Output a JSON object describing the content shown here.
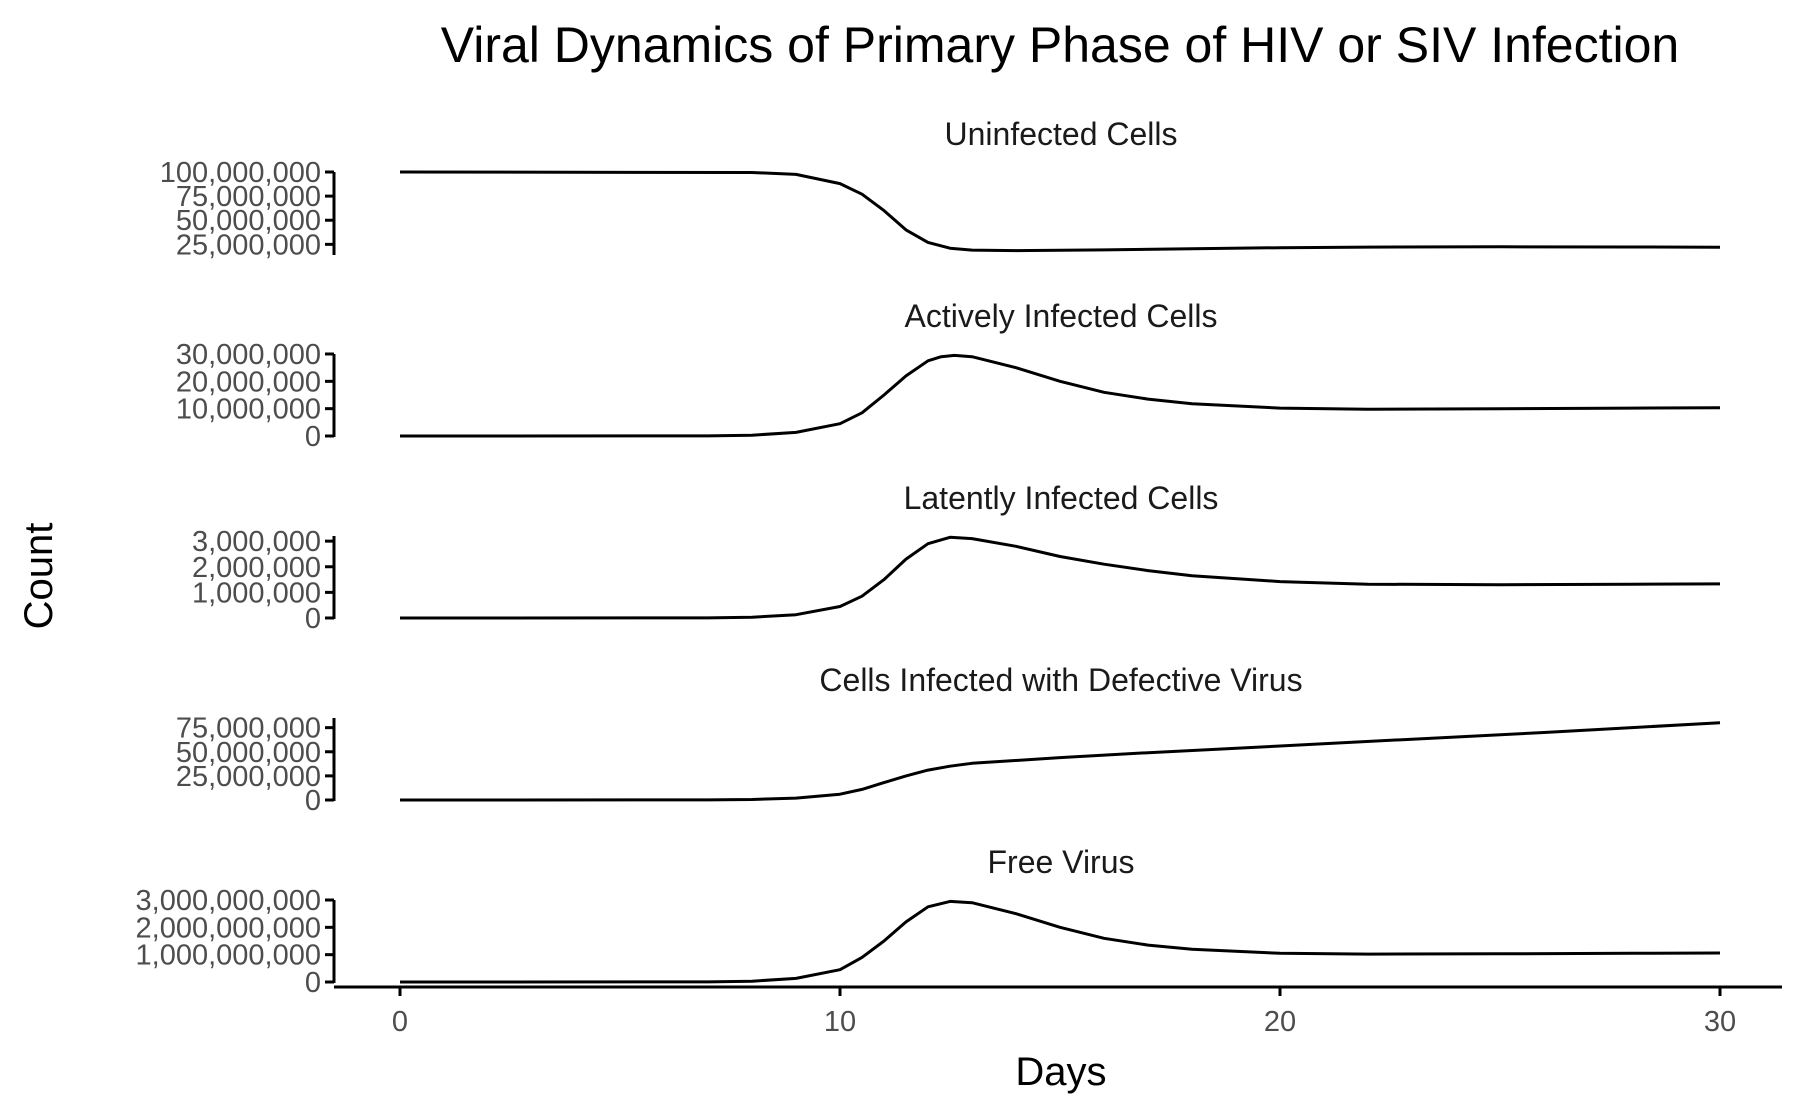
{
  "chart_data": {
    "type": "line",
    "title": "Viral Dynamics of Primary Phase of HIV or SIV Infection",
    "xlabel": "Days",
    "ylabel": "Count",
    "xlim": [
      0,
      30
    ],
    "x_ticks": [
      {
        "value": 0,
        "label": "0"
      },
      {
        "value": 10,
        "label": "10"
      },
      {
        "value": 20,
        "label": "20"
      },
      {
        "value": 30,
        "label": "30"
      }
    ],
    "grid": false,
    "legend": "none",
    "line_color": "#000000",
    "facets": [
      {
        "title": "Uninfected Cells",
        "ylim": [
          15000000,
          100000000
        ],
        "y_ticks": [
          {
            "value": 25000000,
            "label": "25,000,000"
          },
          {
            "value": 50000000,
            "label": "50,000,000"
          },
          {
            "value": 75000000,
            "label": "75,000,000"
          },
          {
            "value": 100000000,
            "label": "100,000,000"
          }
        ],
        "points": [
          [
            0,
            100000000
          ],
          [
            8,
            99500000
          ],
          [
            9,
            97500000
          ],
          [
            10,
            88000000
          ],
          [
            10.5,
            77000000
          ],
          [
            11,
            60000000
          ],
          [
            11.5,
            40000000
          ],
          [
            12,
            27000000
          ],
          [
            12.5,
            21000000
          ],
          [
            13,
            19000000
          ],
          [
            14,
            18500000
          ],
          [
            16,
            19200000
          ],
          [
            18,
            20500000
          ],
          [
            20,
            21500000
          ],
          [
            22,
            22200000
          ],
          [
            25,
            22500000
          ],
          [
            28,
            22300000
          ],
          [
            30,
            22000000
          ]
        ]
      },
      {
        "title": "Actively Infected Cells",
        "ylim": [
          0,
          30000000
        ],
        "y_ticks": [
          {
            "value": 0,
            "label": "0"
          },
          {
            "value": 10000000,
            "label": "10,000,000"
          },
          {
            "value": 20000000,
            "label": "20,000,000"
          },
          {
            "value": 30000000,
            "label": "30,000,000"
          }
        ],
        "points": [
          [
            0,
            0
          ],
          [
            7,
            50000
          ],
          [
            8,
            300000
          ],
          [
            9,
            1300000
          ],
          [
            10,
            4500000
          ],
          [
            10.5,
            8500000
          ],
          [
            11,
            15000000
          ],
          [
            11.5,
            22000000
          ],
          [
            12,
            27500000
          ],
          [
            12.3,
            29000000
          ],
          [
            12.6,
            29500000
          ],
          [
            13,
            29000000
          ],
          [
            14,
            25000000
          ],
          [
            15,
            20000000
          ],
          [
            16,
            16000000
          ],
          [
            17,
            13500000
          ],
          [
            18,
            11800000
          ],
          [
            20,
            10200000
          ],
          [
            22,
            9800000
          ],
          [
            25,
            10000000
          ],
          [
            28,
            10200000
          ],
          [
            30,
            10300000
          ]
        ]
      },
      {
        "title": "Latently Infected Cells",
        "ylim": [
          0,
          3200000
        ],
        "y_ticks": [
          {
            "value": 0,
            "label": "0"
          },
          {
            "value": 1000000,
            "label": "1,000,000"
          },
          {
            "value": 2000000,
            "label": "2,000,000"
          },
          {
            "value": 3000000,
            "label": "3,000,000"
          }
        ],
        "points": [
          [
            0,
            0
          ],
          [
            7,
            5000
          ],
          [
            8,
            30000
          ],
          [
            9,
            130000
          ],
          [
            10,
            450000
          ],
          [
            10.5,
            850000
          ],
          [
            11,
            1500000
          ],
          [
            11.5,
            2300000
          ],
          [
            12,
            2900000
          ],
          [
            12.5,
            3150000
          ],
          [
            13,
            3100000
          ],
          [
            14,
            2800000
          ],
          [
            15,
            2400000
          ],
          [
            16,
            2100000
          ],
          [
            17,
            1850000
          ],
          [
            18,
            1650000
          ],
          [
            20,
            1420000
          ],
          [
            22,
            1320000
          ],
          [
            25,
            1300000
          ],
          [
            28,
            1320000
          ],
          [
            30,
            1330000
          ]
        ]
      },
      {
        "title": "Cells Infected with Defective Virus",
        "ylim": [
          0,
          85000000
        ],
        "y_ticks": [
          {
            "value": 0,
            "label": "0"
          },
          {
            "value": 25000000,
            "label": "25,000,000"
          },
          {
            "value": 50000000,
            "label": "50,000,000"
          },
          {
            "value": 75000000,
            "label": "75,000,000"
          }
        ],
        "points": [
          [
            0,
            0
          ],
          [
            7,
            100000
          ],
          [
            8,
            500000
          ],
          [
            9,
            2000000
          ],
          [
            10,
            6000000
          ],
          [
            10.5,
            11000000
          ],
          [
            11,
            18000000
          ],
          [
            11.5,
            25000000
          ],
          [
            12,
            31000000
          ],
          [
            12.5,
            35000000
          ],
          [
            13,
            38000000
          ],
          [
            15,
            44000000
          ],
          [
            17,
            49000000
          ],
          [
            20,
            56000000
          ],
          [
            23,
            63000000
          ],
          [
            26,
            70000000
          ],
          [
            28,
            75000000
          ],
          [
            30,
            80000000
          ]
        ]
      },
      {
        "title": "Free Virus",
        "ylim": [
          0,
          3000000000
        ],
        "y_ticks": [
          {
            "value": 0,
            "label": "0"
          },
          {
            "value": 1000000000,
            "label": "1,000,000,000"
          },
          {
            "value": 2000000000,
            "label": "2,000,000,000"
          },
          {
            "value": 3000000000,
            "label": "3,000,000,000"
          }
        ],
        "points": [
          [
            0,
            0
          ],
          [
            7,
            5000000
          ],
          [
            8,
            30000000
          ],
          [
            9,
            130000000
          ],
          [
            10,
            450000000
          ],
          [
            10.5,
            900000000
          ],
          [
            11,
            1500000000
          ],
          [
            11.5,
            2200000000
          ],
          [
            12,
            2750000000
          ],
          [
            12.5,
            2950000000
          ],
          [
            13,
            2900000000
          ],
          [
            14,
            2500000000
          ],
          [
            15,
            2000000000
          ],
          [
            16,
            1600000000
          ],
          [
            17,
            1350000000
          ],
          [
            18,
            1200000000
          ],
          [
            20,
            1050000000
          ],
          [
            22,
            1020000000
          ],
          [
            25,
            1030000000
          ],
          [
            28,
            1050000000
          ],
          [
            30,
            1060000000
          ]
        ]
      }
    ]
  }
}
